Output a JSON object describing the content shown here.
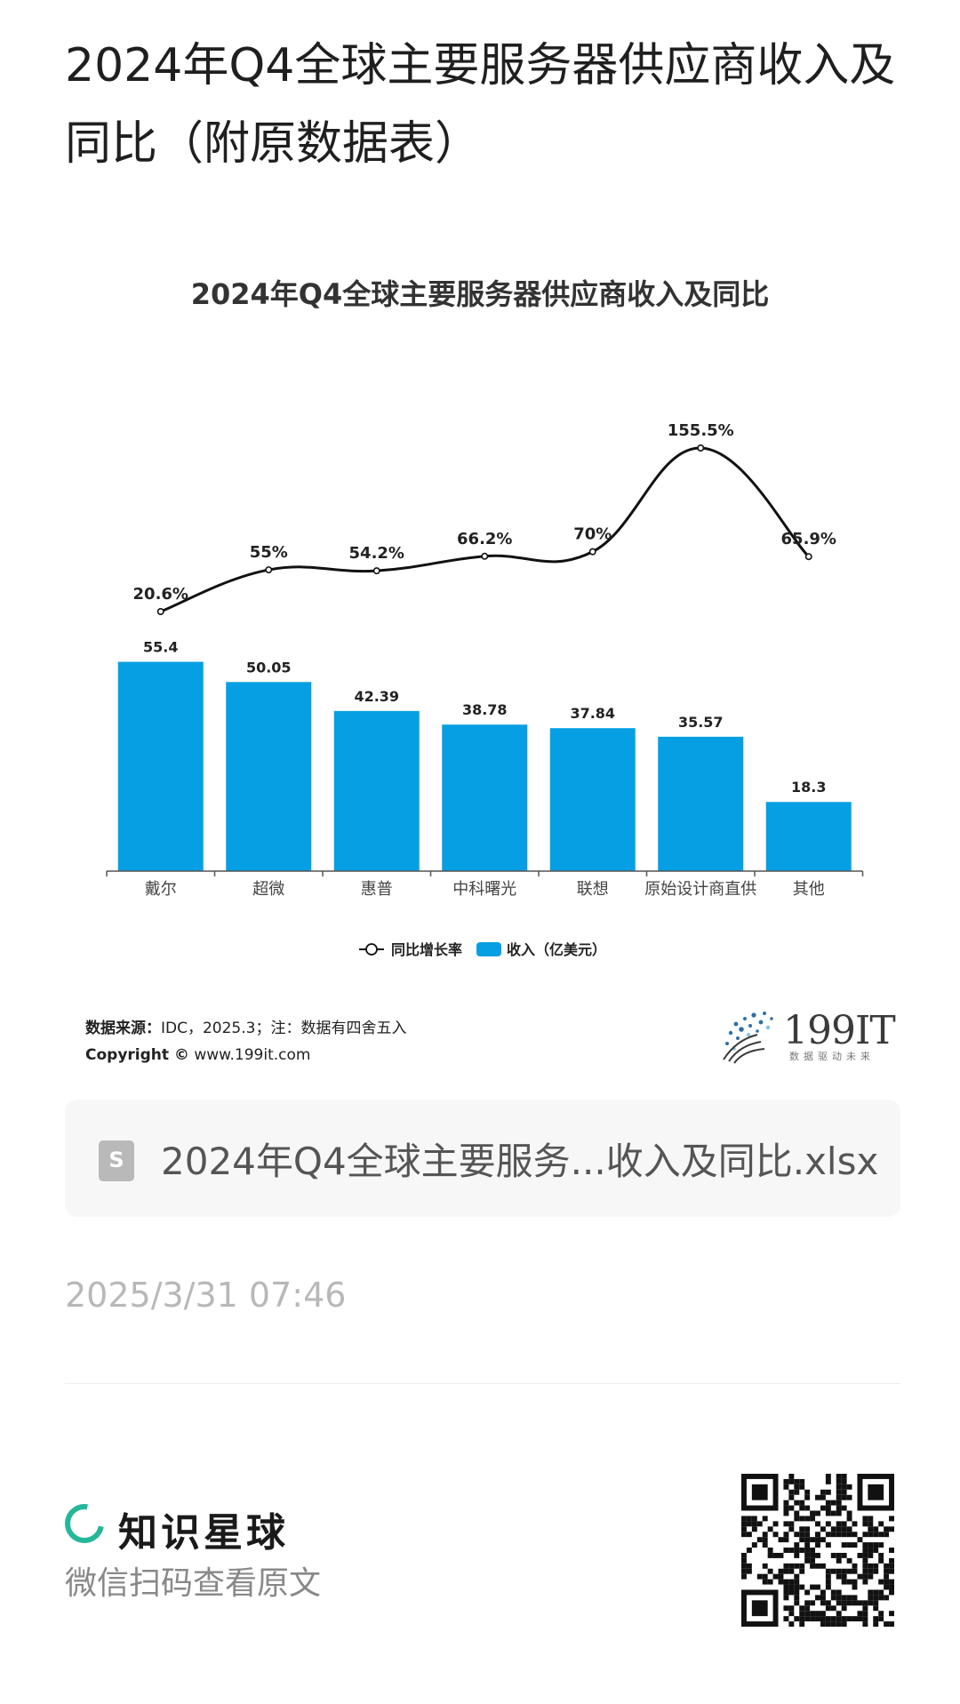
{
  "page": {
    "title": "2024年Q4全球主要服务器供应商收入及同比（附原数据表）"
  },
  "chart_data": {
    "type": "bar",
    "title": "2024年Q4全球主要服务器供应商收入及同比",
    "categories": [
      "戴尔",
      "超微",
      "惠普",
      "中科曙光",
      "联想",
      "原始设计商直供",
      "其他"
    ],
    "series": [
      {
        "name": "收入（亿美元）",
        "type": "bar",
        "values": [
          55.4,
          50.05,
          42.39,
          38.78,
          37.84,
          35.57,
          18.3
        ],
        "labels": [
          "55.4",
          "50.05",
          "42.39",
          "38.78",
          "37.84",
          "35.57",
          "18.3"
        ],
        "color": "#069FE3"
      },
      {
        "name": "同比增长率",
        "type": "line",
        "values": [
          20.6,
          55,
          54.2,
          66.2,
          70,
          155.5,
          65.9
        ],
        "labels": [
          "20.6%",
          "55%",
          "54.2%",
          "66.2%",
          "70%",
          "155.5%",
          "65.9%"
        ],
        "color": "#111111"
      }
    ],
    "legend": {
      "line_label": "同比增长率",
      "bar_label": "收入（亿美元）",
      "placement": "bottom"
    },
    "grid": false
  },
  "source": {
    "label": "数据来源：",
    "text": "IDC，2025.3；注：数据有四舍五入",
    "copyright_label": "Copyright ©",
    "copyright_url": "www.199it.com"
  },
  "logo": {
    "name": "199IT",
    "tagline": "数据驱动未来"
  },
  "file": {
    "icon_letter": "S",
    "name": "2024年Q4全球主要服务...收入及同比.xlsx"
  },
  "timestamp": "2025/3/31 07:46",
  "footer": {
    "brand": "知识星球",
    "scan_hint": "微信扫码查看原文"
  }
}
